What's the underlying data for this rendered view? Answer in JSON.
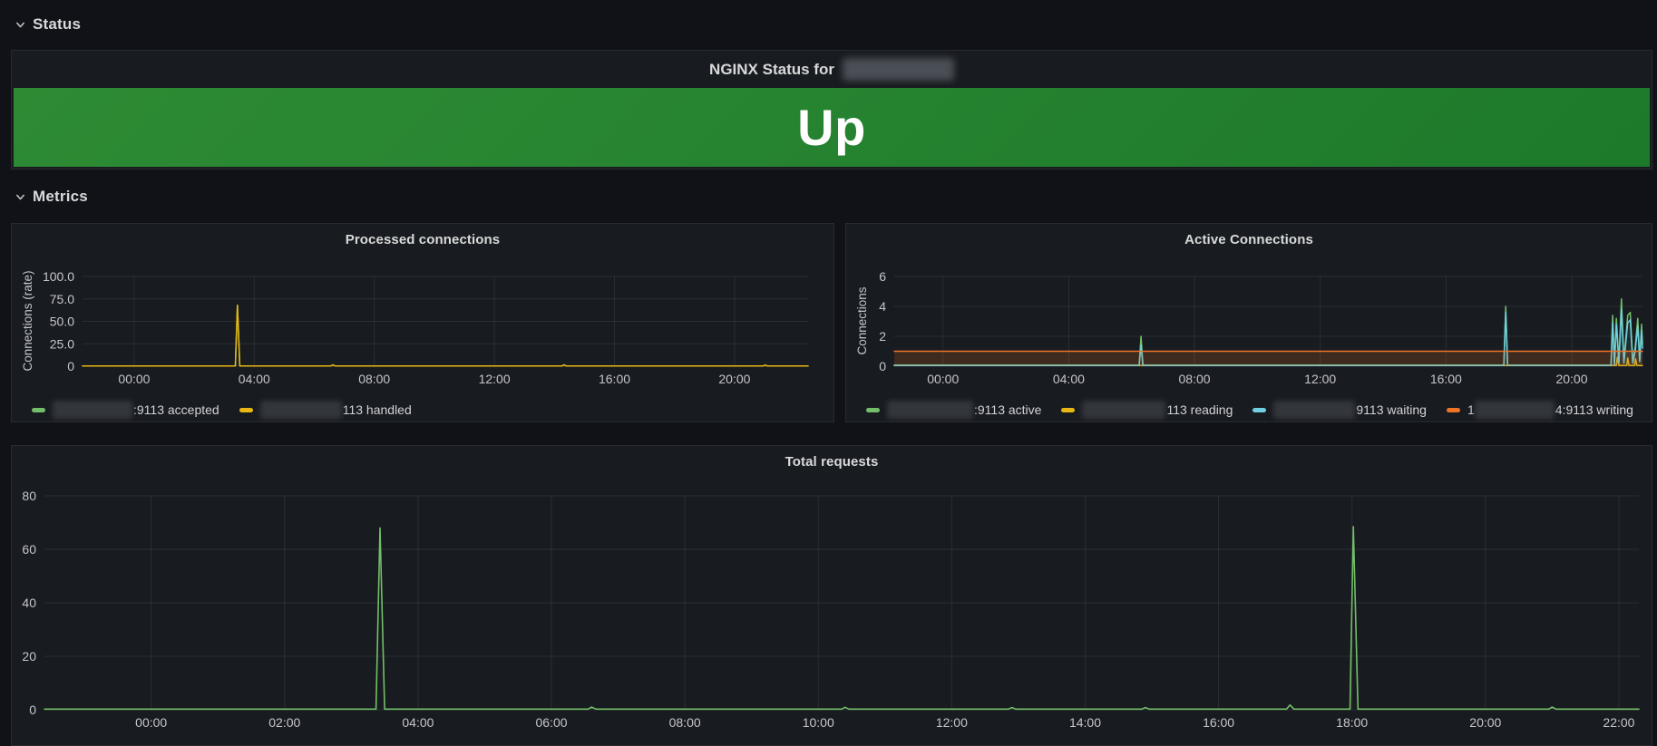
{
  "window": {
    "bg": "#111217",
    "panel_bg": "#181b1f"
  },
  "rows": {
    "status": {
      "label": "Status"
    },
    "metrics": {
      "label": "Metrics"
    }
  },
  "status_panel": {
    "title_prefix": "NGINX Status for",
    "state": {
      "text": "Up",
      "colors": [
        "#2e8b34",
        "#1d7a2b"
      ],
      "text_color": "#ffffff"
    }
  },
  "chart_data": [
    {
      "id": "processed-connections",
      "type": "line",
      "title": "Processed connections",
      "ylabel": "Connections (rate)",
      "xlim": [
        -1.72,
        22.45
      ],
      "ylim": [
        0,
        100
      ],
      "grid": true,
      "legend_position": "bottom",
      "line_width": 1.5,
      "x_ticks": [
        {
          "t": 0,
          "label": "00:00"
        },
        {
          "t": 4,
          "label": "04:00"
        },
        {
          "t": 8,
          "label": "08:00"
        },
        {
          "t": 12,
          "label": "12:00"
        },
        {
          "t": 16,
          "label": "16:00"
        },
        {
          "t": 20,
          "label": "20:00"
        }
      ],
      "y_ticks": [
        {
          "v": 0,
          "label": "0"
        },
        {
          "v": 25,
          "label": "25.0"
        },
        {
          "v": 50,
          "label": "50.0"
        },
        {
          "v": 75,
          "label": "75.0"
        },
        {
          "v": 100,
          "label": "100.0"
        }
      ],
      "series": [
        {
          "sid": "accepted",
          "name": "[redacted]:9113 accepted",
          "color": "#73bf69",
          "fill_opacity": 0,
          "points": [
            [
              -1.72,
              0.2
            ],
            [
              3.37,
              0.2
            ],
            [
              3.44,
              68
            ],
            [
              3.52,
              0.2
            ],
            [
              6.55,
              0.2
            ],
            [
              6.62,
              1.5
            ],
            [
              6.7,
              0.2
            ],
            [
              14.25,
              0.2
            ],
            [
              14.32,
              1.4
            ],
            [
              14.4,
              0.2
            ],
            [
              20.95,
              0.2
            ],
            [
              21.02,
              1.2
            ],
            [
              21.1,
              0.2
            ],
            [
              22.45,
              0.2
            ]
          ]
        },
        {
          "sid": "handled",
          "name": "[redacted]113 handled",
          "color": "#e8b713",
          "fill_opacity": 0,
          "points": [
            [
              -1.72,
              0.2
            ],
            [
              3.37,
              0.2
            ],
            [
              3.44,
              68
            ],
            [
              3.52,
              0.2
            ],
            [
              6.55,
              0.2
            ],
            [
              6.62,
              1.5
            ],
            [
              6.7,
              0.2
            ],
            [
              14.25,
              0.2
            ],
            [
              14.32,
              1.4
            ],
            [
              14.4,
              0.2
            ],
            [
              20.95,
              0.2
            ],
            [
              21.02,
              1.2
            ],
            [
              21.1,
              0.2
            ],
            [
              22.45,
              0.2
            ]
          ]
        }
      ],
      "legend": [
        {
          "color": "#73bf69",
          "pre": "",
          "redact_w": 88,
          "label": ":9113 accepted"
        },
        {
          "color": "#e8b713",
          "pre": "",
          "redact_w": 90,
          "label": "113 handled"
        }
      ]
    },
    {
      "id": "active-connections",
      "type": "line",
      "title": "Active Connections",
      "ylabel": "Connections",
      "xlim": [
        -1.55,
        22.25
      ],
      "ylim": [
        0,
        6
      ],
      "grid": true,
      "legend_position": "bottom",
      "line_width": 1.5,
      "x_ticks": [
        {
          "t": 0,
          "label": "00:00"
        },
        {
          "t": 4,
          "label": "04:00"
        },
        {
          "t": 8,
          "label": "08:00"
        },
        {
          "t": 12,
          "label": "12:00"
        },
        {
          "t": 16,
          "label": "16:00"
        },
        {
          "t": 20,
          "label": "20:00"
        }
      ],
      "y_ticks": [
        {
          "v": 0,
          "label": "0"
        },
        {
          "v": 2,
          "label": "2"
        },
        {
          "v": 4,
          "label": "4"
        },
        {
          "v": 6,
          "label": "6"
        }
      ],
      "series": [
        {
          "sid": "reading",
          "name": "[redacted]113 reading",
          "color": "#e8b713",
          "fill_opacity": 0,
          "points": [
            [
              -1.55,
              0.05
            ],
            [
              21.42,
              0.05
            ],
            [
              21.45,
              0.6
            ],
            [
              21.5,
              0.05
            ],
            [
              21.75,
              0.05
            ],
            [
              21.78,
              0.55
            ],
            [
              21.82,
              0.05
            ],
            [
              22.0,
              0.05
            ],
            [
              22.03,
              0.5
            ],
            [
              22.07,
              0.05
            ],
            [
              22.25,
              0.05
            ]
          ]
        },
        {
          "sid": "active",
          "name": "[redacted]:9113 active",
          "color": "#73bf69",
          "fill_opacity": 0.05,
          "points": [
            [
              -1.55,
              0.08
            ],
            [
              6.24,
              0.08
            ],
            [
              6.3,
              2
            ],
            [
              6.36,
              0.08
            ],
            [
              17.84,
              0.08
            ],
            [
              17.9,
              4
            ],
            [
              17.96,
              0.08
            ],
            [
              21.25,
              0.08
            ],
            [
              21.3,
              3.4
            ],
            [
              21.36,
              0.2
            ],
            [
              21.42,
              3.2
            ],
            [
              21.5,
              0.3
            ],
            [
              21.58,
              4.5
            ],
            [
              21.66,
              0.3
            ],
            [
              21.78,
              3.4
            ],
            [
              21.86,
              3.6
            ],
            [
              21.94,
              0.3
            ],
            [
              22.02,
              1.3
            ],
            [
              22.1,
              3.2
            ],
            [
              22.16,
              0.4
            ],
            [
              22.22,
              2.8
            ],
            [
              22.25,
              1.5
            ]
          ]
        },
        {
          "sid": "waiting",
          "name": "[redacted]9113 waiting",
          "color": "#6ed0e0",
          "fill_opacity": 0.05,
          "points": [
            [
              -1.55,
              0.05
            ],
            [
              6.24,
              0.05
            ],
            [
              6.3,
              1.4
            ],
            [
              6.36,
              0.05
            ],
            [
              17.84,
              0.05
            ],
            [
              17.9,
              3.6
            ],
            [
              17.96,
              0.05
            ],
            [
              21.25,
              0.05
            ],
            [
              21.3,
              2.9
            ],
            [
              21.36,
              0.1
            ],
            [
              21.42,
              2.8
            ],
            [
              21.5,
              0.2
            ],
            [
              21.58,
              3.8
            ],
            [
              21.66,
              0.2
            ],
            [
              21.78,
              2.9
            ],
            [
              21.86,
              3.1
            ],
            [
              21.94,
              0.2
            ],
            [
              22.02,
              1.0
            ],
            [
              22.1,
              2.7
            ],
            [
              22.16,
              0.3
            ],
            [
              22.22,
              2.4
            ],
            [
              22.25,
              1.2
            ]
          ]
        },
        {
          "sid": "writing",
          "name": "1[redacted]4:9113 writing",
          "color": "#f07427",
          "fill_opacity": 0.18,
          "points": [
            [
              -1.55,
              1
            ],
            [
              22.25,
              1
            ]
          ]
        }
      ],
      "legend": [
        {
          "color": "#73bf69",
          "pre": "",
          "redact_w": 95,
          "label": ":9113 active"
        },
        {
          "color": "#e8b713",
          "pre": "",
          "redact_w": 92,
          "label": "113 reading"
        },
        {
          "color": "#6ed0e0",
          "pre": "",
          "redact_w": 90,
          "label": "9113 waiting"
        },
        {
          "color": "#f07427",
          "pre": "1",
          "redact_w": 88,
          "label": "4:9113 writing"
        }
      ]
    },
    {
      "id": "total-requests",
      "type": "line",
      "title": "Total requests",
      "ylabel": "",
      "xlim": [
        -1.6,
        22.3
      ],
      "ylim": [
        0,
        80
      ],
      "grid": true,
      "legend_position": "none",
      "line_width": 1.6,
      "x_ticks": [
        {
          "t": 0,
          "label": "00:00"
        },
        {
          "t": 2,
          "label": "02:00"
        },
        {
          "t": 4,
          "label": "04:00"
        },
        {
          "t": 6,
          "label": "06:00"
        },
        {
          "t": 8,
          "label": "08:00"
        },
        {
          "t": 10,
          "label": "10:00"
        },
        {
          "t": 12,
          "label": "12:00"
        },
        {
          "t": 14,
          "label": "14:00"
        },
        {
          "t": 16,
          "label": "16:00"
        },
        {
          "t": 18,
          "label": "18:00"
        },
        {
          "t": 20,
          "label": "20:00"
        },
        {
          "t": 22,
          "label": "22:00"
        }
      ],
      "y_ticks": [
        {
          "v": 0,
          "label": "0"
        },
        {
          "v": 20,
          "label": "20"
        },
        {
          "v": 40,
          "label": "40"
        },
        {
          "v": 60,
          "label": "60"
        },
        {
          "v": 80,
          "label": "80"
        }
      ],
      "series": [
        {
          "sid": "requests",
          "name": "total requests",
          "color": "#73bf69",
          "fill_opacity": 0,
          "points": [
            [
              -1.6,
              0.25
            ],
            [
              3.37,
              0.25
            ],
            [
              3.43,
              68
            ],
            [
              3.5,
              0.25
            ],
            [
              6.55,
              0.25
            ],
            [
              6.6,
              1
            ],
            [
              6.67,
              0.25
            ],
            [
              10.35,
              0.25
            ],
            [
              10.4,
              0.9
            ],
            [
              10.46,
              0.25
            ],
            [
              12.85,
              0.25
            ],
            [
              12.9,
              0.8
            ],
            [
              12.96,
              0.25
            ],
            [
              14.85,
              0.25
            ],
            [
              14.9,
              0.8
            ],
            [
              14.96,
              0.25
            ],
            [
              17.02,
              0.25
            ],
            [
              17.07,
              1.8
            ],
            [
              17.13,
              0.25
            ],
            [
              17.97,
              0.25
            ],
            [
              18.02,
              68.5
            ],
            [
              18.09,
              0.25
            ],
            [
              20.95,
              0.25
            ],
            [
              21.0,
              1.0
            ],
            [
              21.06,
              0.25
            ],
            [
              22.3,
              0.25
            ]
          ]
        }
      ],
      "legend": []
    }
  ]
}
